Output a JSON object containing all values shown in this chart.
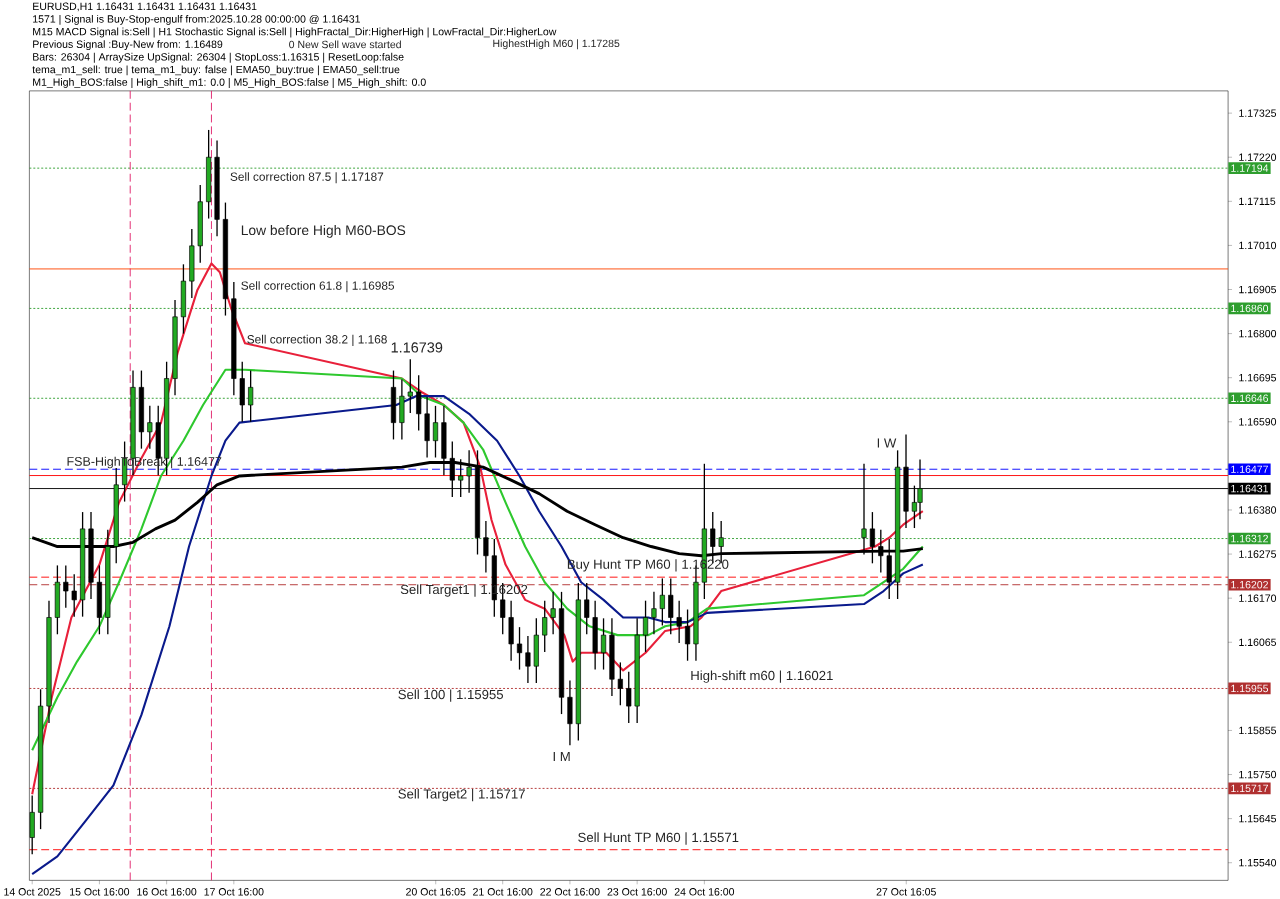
{
  "chart_data": {
    "type": "candlestick",
    "title": "EURUSD,H1  1.16431 1.16431 1.16431 1.16431",
    "x": [
      "2025-10-14T16:00",
      "2025-10-14T19:00",
      "2025-10-14T22:00",
      "2025-10-15T01:00",
      "2025-10-15T04:00",
      "2025-10-15T07:00",
      "2025-10-15T10:00",
      "2025-10-15T13:00",
      "2025-10-15T16:00",
      "2025-10-15T19:00",
      "2025-10-15T22:00",
      "2025-10-16T01:00",
      "2025-10-16T04:00",
      "2025-10-16T07:00",
      "2025-10-16T10:00",
      "2025-10-16T13:00",
      "2025-10-16T16:00",
      "2025-10-16T19:00",
      "2025-10-16T22:00",
      "2025-10-17T01:00",
      "2025-10-17T04:00",
      "2025-10-17T07:00",
      "2025-10-17T10:00",
      "2025-10-17T13:00",
      "2025-10-17T16:00",
      "2025-10-17T19:00",
      "2025-10-17T22:00",
      "2025-10-20T01:00",
      "2025-10-20T04:00",
      "2025-10-20T07:00",
      "2025-10-20T10:00",
      "2025-10-20T13:00",
      "2025-10-20T16:00",
      "2025-10-20T19:00",
      "2025-10-20T22:00",
      "2025-10-21T01:00",
      "2025-10-21T04:00",
      "2025-10-21T07:00",
      "2025-10-21T10:00",
      "2025-10-21T13:00",
      "2025-10-21T16:00",
      "2025-10-21T19:00",
      "2025-10-21T22:00",
      "2025-10-22T01:00",
      "2025-10-22T04:00",
      "2025-10-22T07:00",
      "2025-10-22T10:00",
      "2025-10-22T13:00",
      "2025-10-22T16:00",
      "2025-10-22T19:00",
      "2025-10-22T22:00",
      "2025-10-23T01:00",
      "2025-10-23T04:00",
      "2025-10-23T07:00",
      "2025-10-23T10:00",
      "2025-10-23T13:00",
      "2025-10-23T16:00",
      "2025-10-23T19:00",
      "2025-10-23T22:00",
      "2025-10-24T01:00",
      "2025-10-24T04:00",
      "2025-10-24T07:00",
      "2025-10-24T10:00",
      "2025-10-24T13:00",
      "2025-10-24T16:00",
      "2025-10-24T19:00",
      "2025-10-24T22:00",
      "2025-10-27T01:00",
      "2025-10-27T04:00",
      "2025-10-27T07:00",
      "2025-10-27T10:00",
      "2025-10-27T13:00",
      "2025-10-27T16:00",
      "2025-10-27T19:00",
      "2025-10-27T21:00"
    ],
    "ohlc": [
      [
        1.156,
        1.157,
        1.1556,
        1.1566
      ],
      [
        1.1566,
        1.15953,
        1.1562,
        1.15913
      ],
      [
        1.15913,
        1.16164,
        1.15873,
        1.16124
      ],
      [
        1.16124,
        1.16248,
        1.16084,
        1.16208
      ],
      [
        1.16208,
        1.16248,
        1.16147,
        1.16187
      ],
      [
        1.16187,
        1.16227,
        1.16126,
        1.16166
      ],
      [
        1.16166,
        1.16375,
        1.16126,
        1.16335
      ],
      [
        1.16335,
        1.16375,
        1.16168,
        1.16208
      ],
      [
        1.16208,
        1.16248,
        1.16084,
        1.16124
      ],
      [
        1.16124,
        1.16333,
        1.16084,
        1.16293
      ],
      [
        1.16293,
        1.1648,
        1.16253,
        1.1644
      ],
      [
        1.1644,
        1.16543,
        1.164,
        1.16503
      ],
      [
        1.16503,
        1.16712,
        1.16463,
        1.16672
      ],
      [
        1.16672,
        1.16712,
        1.16526,
        1.16566
      ],
      [
        1.16566,
        1.16628,
        1.16526,
        1.16588
      ],
      [
        1.16588,
        1.16628,
        1.16463,
        1.16503
      ],
      [
        1.16503,
        1.16733,
        1.16463,
        1.16693
      ],
      [
        1.16693,
        1.1688,
        1.16653,
        1.1684
      ],
      [
        1.1684,
        1.16965,
        1.168,
        1.16925
      ],
      [
        1.16925,
        1.17049,
        1.16885,
        1.17009
      ],
      [
        1.17009,
        1.17154,
        1.16969,
        1.17114
      ],
      [
        1.17114,
        1.17285,
        1.17074,
        1.1722
      ],
      [
        1.1722,
        1.1726,
        1.17032,
        1.17072
      ],
      [
        1.17072,
        1.17112,
        1.16843,
        1.16883
      ],
      [
        1.16883,
        1.16923,
        1.16653,
        1.16693
      ],
      [
        1.16693,
        1.16733,
        1.1659,
        1.1663
      ],
      [
        1.1663,
        1.16712,
        1.1659,
        1.16672
      ],
      [
        1.16672,
        1.16712,
        1.16548,
        1.16588
      ],
      [
        1.16588,
        1.16691,
        1.16548,
        1.16651
      ],
      [
        1.16651,
        1.16739,
        1.16611,
        1.16661
      ],
      [
        1.16661,
        1.16701,
        1.16569,
        1.16609
      ],
      [
        1.16609,
        1.16649,
        1.16505,
        1.16545
      ],
      [
        1.16545,
        1.16628,
        1.16505,
        1.16588
      ],
      [
        1.16588,
        1.16628,
        1.16463,
        1.16503
      ],
      [
        1.16503,
        1.16543,
        1.16411,
        1.16451
      ],
      [
        1.16451,
        1.16501,
        1.16411,
        1.16461
      ],
      [
        1.16461,
        1.16522,
        1.16421,
        1.16482
      ],
      [
        1.16482,
        1.16522,
        1.16274,
        1.16314
      ],
      [
        1.16314,
        1.16354,
        1.16231,
        1.16271
      ],
      [
        1.16271,
        1.16311,
        1.16126,
        1.16166
      ],
      [
        1.16166,
        1.16206,
        1.16084,
        1.16124
      ],
      [
        1.16124,
        1.16164,
        1.16021,
        1.16061
      ],
      [
        1.16061,
        1.16101,
        1.16,
        1.1604
      ],
      [
        1.1604,
        1.1608,
        1.15968,
        1.16008
      ],
      [
        1.16008,
        1.16122,
        1.15968,
        1.16082
      ],
      [
        1.16082,
        1.16164,
        1.16042,
        1.16124
      ],
      [
        1.16124,
        1.16185,
        1.16084,
        1.16145
      ],
      [
        1.16145,
        1.16185,
        1.15894,
        1.15934
      ],
      [
        1.15934,
        1.15974,
        1.1582,
        1.15871
      ],
      [
        1.15871,
        1.16206,
        1.15831,
        1.16166
      ],
      [
        1.16166,
        1.16206,
        1.16084,
        1.16124
      ],
      [
        1.16124,
        1.16164,
        1.16,
        1.1604
      ],
      [
        1.1604,
        1.16122,
        1.16,
        1.16082
      ],
      [
        1.16082,
        1.16122,
        1.15937,
        1.15977
      ],
      [
        1.15977,
        1.16017,
        1.15915,
        1.15955
      ],
      [
        1.15955,
        1.15995,
        1.15873,
        1.15913
      ],
      [
        1.15913,
        1.16122,
        1.15873,
        1.16082
      ],
      [
        1.16082,
        1.16164,
        1.16042,
        1.16124
      ],
      [
        1.16124,
        1.16185,
        1.16084,
        1.16145
      ],
      [
        1.16145,
        1.16217,
        1.16105,
        1.16177
      ],
      [
        1.16177,
        1.16217,
        1.16084,
        1.16124
      ],
      [
        1.16124,
        1.16164,
        1.16063,
        1.16103
      ],
      [
        1.16103,
        1.16143,
        1.16021,
        1.16061
      ],
      [
        1.16061,
        1.16248,
        1.16021,
        1.16208
      ],
      [
        1.16208,
        1.1649,
        1.16168,
        1.16335
      ],
      [
        1.16335,
        1.16375,
        1.16253,
        1.16293
      ],
      [
        1.16293,
        1.16354,
        1.16253,
        1.16314
      ],
      [
        1.16314,
        1.1649,
        1.16274,
        1.16335
      ],
      [
        1.16335,
        1.16375,
        1.16253,
        1.16293
      ],
      [
        1.16293,
        1.16333,
        1.16231,
        1.16271
      ],
      [
        1.16271,
        1.16311,
        1.16168,
        1.16208
      ],
      [
        1.16208,
        1.16522,
        1.16168,
        1.16482
      ],
      [
        1.16482,
        1.1656,
        1.16337,
        1.16377
      ],
      [
        1.16377,
        1.16438,
        1.16337,
        1.16398
      ],
      [
        1.16398,
        1.165,
        1.16358,
        1.16431
      ]
    ],
    "series": [
      {
        "type": "line",
        "color": "#e8203a",
        "x": [
          "2025-10-14T16:00",
          "2025-10-14T23:00",
          "2025-10-15T06:00",
          "2025-10-15T16:00",
          "2025-10-15T23:00",
          "2025-10-16T07:00",
          "2025-10-16T14:00",
          "2025-10-16T20:00",
          "2025-10-17T03:00",
          "2025-10-17T08:00",
          "2025-10-17T11:00",
          "2025-10-17T15:00",
          "2025-10-17T20:00",
          "2025-10-20T04:00",
          "2025-10-20T11:00",
          "2025-10-20T19:00",
          "2025-10-21T02:00",
          "2025-10-21T08:00",
          "2025-10-21T12:00",
          "2025-10-21T17:00",
          "2025-10-22T00:00",
          "2025-10-22T07:00",
          "2025-10-22T14:00",
          "2025-10-22T17:00",
          "2025-10-22T20:00",
          "2025-10-23T05:00",
          "2025-10-23T11:00",
          "2025-10-23T19:00",
          "2025-10-24T02:00",
          "2025-10-24T11:00",
          "2025-10-24T15:00",
          "2025-10-24T22:00",
          "2025-10-27T05:00",
          "2025-10-27T10:00",
          "2025-10-27T15:00",
          "2025-10-27T22:00"
        ],
        "values": [
          1.15703,
          1.15934,
          1.16124,
          1.1625,
          1.16398,
          1.16503,
          1.16588,
          1.16756,
          1.16904,
          1.16967,
          1.16946,
          1.16861,
          1.16777,
          1.16693,
          1.16661,
          1.1663,
          1.16588,
          1.16482,
          1.16356,
          1.1625,
          1.16166,
          1.16145,
          1.16082,
          1.16019,
          1.1604,
          1.1604,
          1.15998,
          1.1604,
          1.16092,
          1.16103,
          1.16124,
          1.16187,
          1.16293,
          1.16314,
          1.16345,
          1.16377
        ]
      },
      {
        "type": "line",
        "color": "#2ec82e",
        "x": [
          "2025-10-14T16:00",
          "2025-10-15T01:00",
          "2025-10-15T08:00",
          "2025-10-15T16:00",
          "2025-10-15T23:00",
          "2025-10-16T07:00",
          "2025-10-16T14:00",
          "2025-10-16T22:00",
          "2025-10-17T05:00",
          "2025-10-17T13:00",
          "2025-10-17T20:00",
          "2025-10-20T04:00",
          "2025-10-20T11:00",
          "2025-10-20T19:00",
          "2025-10-21T02:00",
          "2025-10-21T09:00",
          "2025-10-21T17:00",
          "2025-10-22T00:00",
          "2025-10-22T07:00",
          "2025-10-22T15:00",
          "2025-10-22T23:00",
          "2025-10-23T09:00",
          "2025-10-23T20:00",
          "2025-10-24T02:00",
          "2025-10-24T10:00",
          "2025-10-24T17:00",
          "2025-10-27T01:00",
          "2025-10-27T08:00",
          "2025-10-27T15:00",
          "2025-10-27T22:00"
        ],
        "values": [
          1.15808,
          1.15934,
          1.16019,
          1.16103,
          1.16208,
          1.16335,
          1.16461,
          1.16545,
          1.1663,
          1.16714,
          1.16714,
          1.16693,
          1.16651,
          1.1663,
          1.16588,
          1.16524,
          1.16398,
          1.16293,
          1.16208,
          1.16145,
          1.16103,
          1.16082,
          1.16082,
          1.16103,
          1.16113,
          1.16145,
          1.16177,
          1.16208,
          1.1624,
          1.16293
        ]
      },
      {
        "type": "line",
        "color": "#0a1a8c",
        "x": [
          "2025-10-14T16:00",
          "2025-10-15T01:00",
          "2025-10-15T11:00",
          "2025-10-15T21:00",
          "2025-10-16T07:00",
          "2025-10-16T17:00",
          "2025-10-17T00:00",
          "2025-10-17T08:00",
          "2025-10-17T13:00",
          "2025-10-17T18:00",
          "2025-10-20T02:00",
          "2025-10-20T09:00",
          "2025-10-20T19:00",
          "2025-10-21T04:00",
          "2025-10-21T14:00",
          "2025-10-21T22:00",
          "2025-10-22T05:00",
          "2025-10-22T13:00",
          "2025-10-22T20:00",
          "2025-10-23T04:00",
          "2025-10-23T11:00",
          "2025-10-23T20:00",
          "2025-10-24T02:00",
          "2025-10-24T10:00",
          "2025-10-24T17:00",
          "2025-10-27T01:00",
          "2025-10-27T08:00",
          "2025-10-27T15:00",
          "2025-10-27T22:00"
        ],
        "values": [
          1.15513,
          1.15555,
          1.15639,
          1.15724,
          1.15892,
          1.16103,
          1.16293,
          1.16461,
          1.16545,
          1.16588,
          1.1663,
          1.16651,
          1.16651,
          1.16609,
          1.16545,
          1.16461,
          1.16377,
          1.16293,
          1.16208,
          1.16166,
          1.16124,
          1.16124,
          1.16113,
          1.16113,
          1.16135,
          1.16156,
          1.16187,
          1.16229,
          1.1625
        ]
      },
      {
        "type": "line",
        "color": "#000000",
        "x": [
          "2025-10-14T16:00",
          "2025-10-15T01:00",
          "2025-10-15T11:00",
          "2025-10-15T21:00",
          "2025-10-16T04:00",
          "2025-10-16T12:00",
          "2025-10-16T19:00",
          "2025-10-17T03:00",
          "2025-10-17T10:00",
          "2025-10-17T18:00",
          "2025-10-20T04:00",
          "2025-10-20T14:00",
          "2025-10-20T23:00",
          "2025-10-21T09:00",
          "2025-10-21T19:00",
          "2025-10-22T05:00",
          "2025-10-22T15:00",
          "2025-10-23T01:00",
          "2025-10-23T11:00",
          "2025-10-23T21:00",
          "2025-10-24T07:00",
          "2025-10-24T15:00",
          "2025-10-24T22:00",
          "2025-10-27T08:00",
          "2025-10-27T15:00",
          "2025-10-27T22:00"
        ],
        "values": [
          1.16314,
          1.16293,
          1.16293,
          1.16293,
          1.16303,
          1.16335,
          1.16356,
          1.16398,
          1.1644,
          1.16461,
          1.16482,
          1.16493,
          1.16493,
          1.16482,
          1.16451,
          1.16419,
          1.16377,
          1.16345,
          1.16314,
          1.16293,
          1.16276,
          1.16271,
          1.16276,
          1.16282,
          1.16282,
          1.16288
        ]
      }
    ],
    "xlim": [
      "2025-10-14T15:00",
      "2025-11-01T11:00"
    ],
    "ylim": [
      1.15498,
      1.17378
    ],
    "xticks": [
      {
        "value": "2025-10-14T16:00",
        "label": "14 Oct 2025"
      },
      {
        "value": "2025-10-15T16:00",
        "label": "15 Oct 16:00"
      },
      {
        "value": "2025-10-16T16:00",
        "label": "16 Oct 16:00"
      },
      {
        "value": "2025-10-17T16:00",
        "label": "17 Oct 16:00"
      },
      {
        "value": "2025-10-20T16:05",
        "label": "20 Oct 16:05"
      },
      {
        "value": "2025-10-21T16:00",
        "label": "21 Oct 16:00"
      },
      {
        "value": "2025-10-22T16:00",
        "label": "22 Oct 16:00"
      },
      {
        "value": "2025-10-23T16:00",
        "label": "23 Oct 16:00"
      },
      {
        "value": "2025-10-24T16:00",
        "label": "24 Oct 16:00"
      },
      {
        "value": "2025-10-27T16:05",
        "label": "27 Oct 16:05"
      }
    ],
    "yticks": [
      1.17325,
      {
        "value": 1.1722,
        "label": "1.17220"
      },
      1.17115,
      {
        "value": 1.1701,
        "label": "1.17010"
      },
      1.16905,
      {
        "value": 1.168,
        "label": "1.16800"
      },
      1.16695,
      {
        "value": 1.1659,
        "label": "1.16590"
      },
      {
        "value": 1.16485,
        "label": null
      },
      {
        "value": 1.1638,
        "label": "1.16380"
      },
      1.16275,
      {
        "value": 1.1617,
        "label": "1.16170"
      },
      1.16065,
      {
        "value": 1.1596,
        "label": null
      },
      1.15855,
      {
        "value": 1.1575,
        "label": "1.15750"
      },
      1.15645,
      {
        "value": 1.1554,
        "label": "1.15540"
      }
    ],
    "ref_lines": [
      {
        "axis": "y",
        "value": 1.17194,
        "label": "1.17194",
        "color": "#2e9e2e",
        "line_style": "dotted"
      },
      {
        "axis": "y",
        "value": 1.1686,
        "label": "1.16860",
        "color": "#2e9e2e",
        "line_style": "dotted"
      },
      {
        "axis": "y",
        "value": 1.16646,
        "label": "1.16646",
        "color": "#2e9e2e",
        "line_style": "dotted"
      },
      {
        "axis": "y",
        "value": 1.16477,
        "label": "1.16477",
        "color": "#0000ff",
        "line_style": "dashed"
      },
      {
        "axis": "y",
        "value": 1.16462,
        "color": "#ff0000",
        "line_style": "solid"
      },
      {
        "axis": "y",
        "value": 1.16431,
        "label": "1.16431",
        "color": "#000000",
        "line_style": "solid"
      },
      {
        "axis": "y",
        "value": 1.16312,
        "label": "1.16312",
        "color": "#2e9e2e",
        "line_style": "dotted"
      },
      {
        "axis": "y",
        "value": 1.16202,
        "label": "1.16202",
        "color": "#b03030",
        "line_style": "dashed"
      },
      {
        "axis": "y",
        "value": 1.1622,
        "color": "#ff0000",
        "line_style": "dashed"
      },
      {
        "axis": "y",
        "value": 1.15955,
        "label": "1.15955",
        "color": "#b03030",
        "line_style": "dotted"
      },
      {
        "axis": "y",
        "value": 1.15717,
        "label": "1.15717",
        "color": "#b03030",
        "line_style": "dotted"
      },
      {
        "axis": "y",
        "value": 1.15571,
        "color": "#ff0000",
        "line_style": "dashed"
      },
      {
        "axis": "y",
        "value": 1.16954,
        "color": "#ff4500",
        "line_style": "solid"
      },
      {
        "axis": "x",
        "value": "2025-10-16T03:00",
        "color": "#e0206a",
        "line_style": "dashed"
      },
      {
        "axis": "x",
        "value": "2025-10-17T08:00",
        "color": "#e0206a",
        "line_style": "dashed"
      }
    ],
    "annotations": [
      "1571 | Signal is Buy-Stop-engulf from:2025.10.28 00:00:00 @ 1.16431",
      "M15 MACD Signal is:Sell | H1 Stochastic Signal is:Sell | HighFractal_Dir:HigherHigh | LowFractal_Dir:HigherLow",
      "Previous Signal :Buy-New from: 1.16489",
      "Bars: 26304 | ArraySize UpSignal: 26304 | StopLoss:1.16315 | ResetLoop:false",
      "tema_m1_sell: true | tema_m1_buy: false | EMA50_buy:true | EMA50_sell:true",
      "M1_High_BOS:false | High_shift_m1: 0.0 | M5_High_BOS:false | M5_High_shift: 0.0",
      "0 New Sell wave started",
      "HighestHigh   M60 | 1.17285",
      "Sell correction 87.5 | 1.17187",
      "Low before High   M60-BOS",
      "Sell correction 61.8 | 1.16985",
      "Sell correction 38.2 | 1.168",
      "1.16739",
      {
        "text": "FSB-HighToBreak | 1.16477",
        "x": "2025-10-16T08:00",
        "y": 1.16493
      },
      "Sell Target1 | 1.16202",
      "Sell 100 | 1.15955",
      "Sell Target2 | 1.15717",
      "Buy Hunt TP M60 | 1.16220",
      "High-shift m60 | 1.16021",
      "Sell Hunt TP M60 | 1.15571",
      "I M",
      "I W"
    ]
  }
}
